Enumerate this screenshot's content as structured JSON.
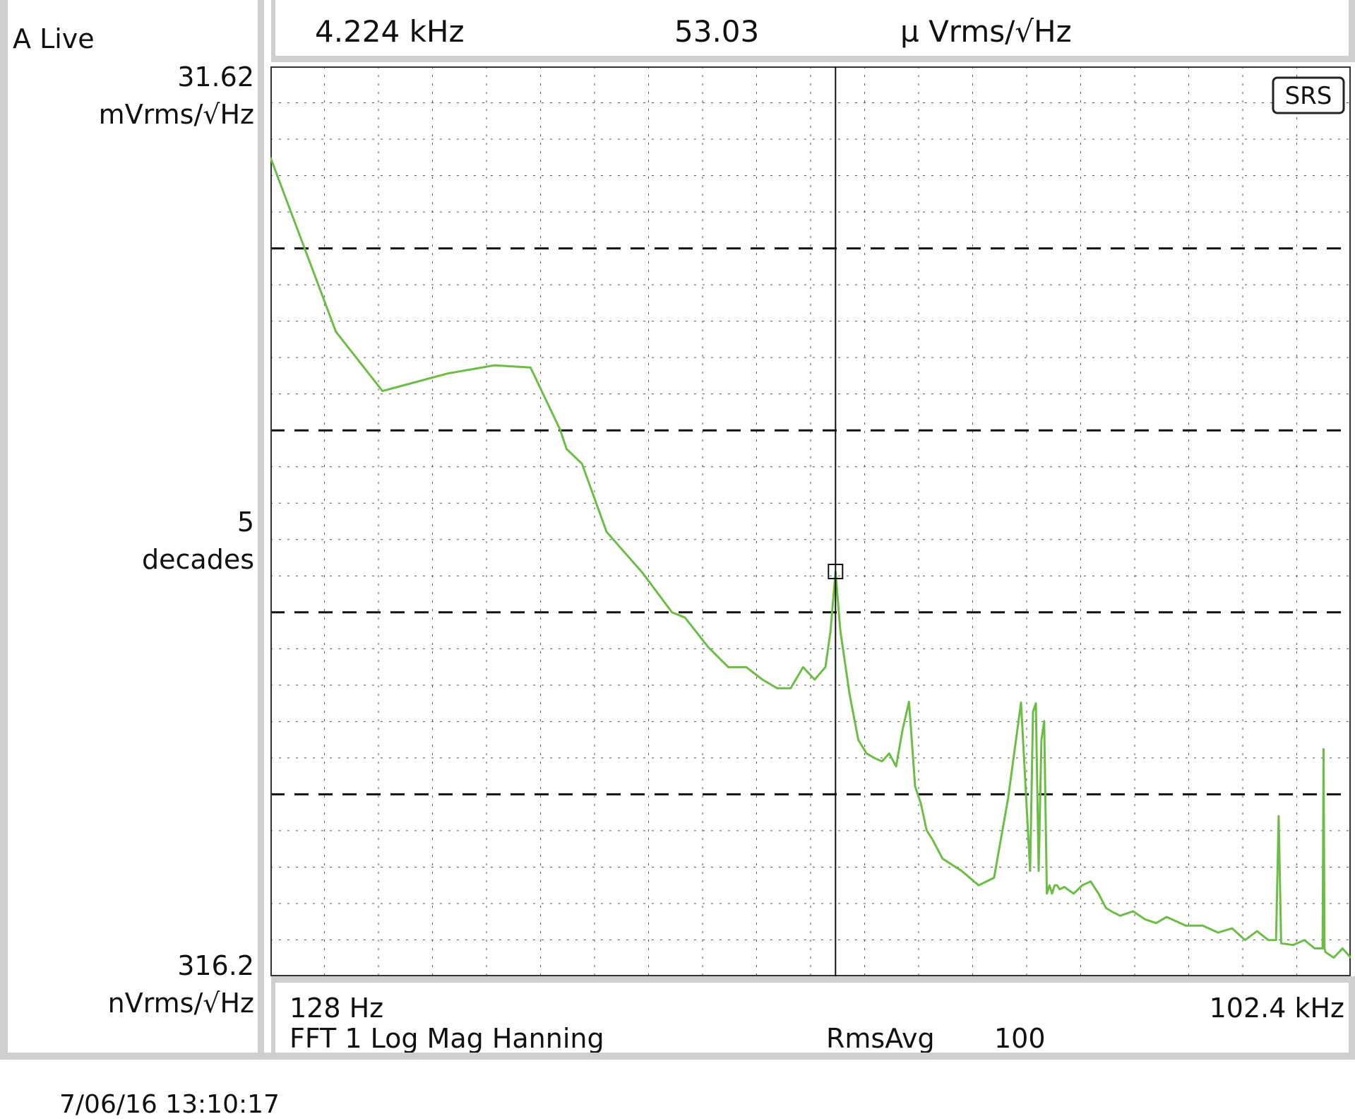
{
  "left_panel": {
    "trace_label": "A Live",
    "top_value": "31.62",
    "top_unit": "mVrms/√Hz",
    "scale_value": "5",
    "scale_unit": "decades",
    "bottom_value": "316.2",
    "bottom_unit": "nVrms/√Hz"
  },
  "marker_readout": {
    "frequency": "4.224 kHz",
    "value": "53.03",
    "unit": "µ Vrms/√Hz"
  },
  "bottom_bar": {
    "x_start": "128 Hz",
    "x_end": "102.4 kHz",
    "measurement": "FFT 1 Log Mag Hanning",
    "avg_mode": "RmsAvg",
    "avg_count": "100"
  },
  "logo": "SRS",
  "timestamp": "7/06/16  13:10:17",
  "colors": {
    "trace": "#6cbd45",
    "grid": "#555555",
    "border": "#cfcfcf"
  },
  "chart_data": {
    "type": "line",
    "x_scale": "log",
    "y_scale": "log",
    "xlim": [
      128,
      102400
    ],
    "ylim": [
      3.162e-07,
      0.03162
    ],
    "x_unit": "Hz",
    "y_unit": "Vrms/√Hz",
    "grid": true,
    "marker": {
      "x": 4224,
      "y": 5.303e-05
    },
    "series": [
      {
        "x": [
          128,
          192,
          256,
          384,
          512,
          640,
          768,
          800,
          880,
          1024,
          1280,
          1536,
          1664,
          1920,
          2176,
          2432,
          2688,
          2944,
          3200,
          3456,
          3712,
          3968,
          4096,
          4224,
          4352,
          4608,
          4864,
          5120,
          5376,
          5632,
          5888,
          6144,
          6400,
          6656,
          6912,
          7168,
          7424,
          7680,
          8192,
          9216,
          10240,
          11264,
          12288,
          13312,
          14080,
          14336,
          14592,
          14848,
          15104,
          15360,
          15616,
          15872,
          16128,
          16384,
          16640,
          16896,
          17408,
          18432,
          19456,
          20480,
          21504,
          22528,
          23552,
          24576,
          26624,
          28672,
          30720,
          32768,
          36864,
          40960,
          45056,
          49152,
          53248,
          57344,
          61440,
          64512,
          65536,
          66560,
          71680,
          76800,
          81920,
          86016,
          86528,
          87040,
          87552,
          92160,
          97280,
          102400
        ],
        "y": [
          0.01,
          0.0011,
          0.00052,
          0.00065,
          0.00072,
          0.0007,
          0.00032,
          0.00025,
          0.000207,
          8.76e-05,
          5.21e-05,
          3.16e-05,
          2.96e-05,
          2.04e-05,
          1.58e-05,
          1.58e-05,
          1.35e-05,
          1.21e-05,
          1.21e-05,
          1.58e-05,
          1.35e-05,
          1.58e-05,
          2.51e-05,
          5.3e-05,
          2.51e-05,
          1.12e-05,
          6.3e-06,
          5.3e-06,
          5e-06,
          4.8e-06,
          5.3e-06,
          4.5e-06,
          7.2e-06,
          1.02e-05,
          3.5e-06,
          2.8e-06,
          2e-06,
          1.8e-06,
          1.4e-06,
          1.2e-06,
          1e-06,
          1.1e-06,
          3e-06,
          1.01e-05,
          1.2e-06,
          9e-06,
          1e-05,
          1.2e-06,
          6.3e-06,
          8e-06,
          9e-07,
          1e-06,
          9e-07,
          1e-06,
          1e-06,
          9.5e-07,
          9.8e-07,
          9e-07,
          1e-06,
          1.05e-06,
          9e-07,
          7.5e-07,
          7.1e-07,
          6.8e-07,
          7.2e-07,
          6.5e-07,
          6.2e-07,
          6.7e-07,
          6e-07,
          6e-07,
          5.5e-07,
          5.8e-07,
          5e-07,
          5.6e-07,
          5e-07,
          5e-07,
          2.4e-06,
          4.8e-07,
          4.7e-07,
          5e-07,
          4.5e-07,
          4.5e-07,
          5.6e-06,
          4.5e-07,
          4.3e-07,
          4e-07,
          4.5e-07,
          4e-07
        ]
      }
    ]
  }
}
